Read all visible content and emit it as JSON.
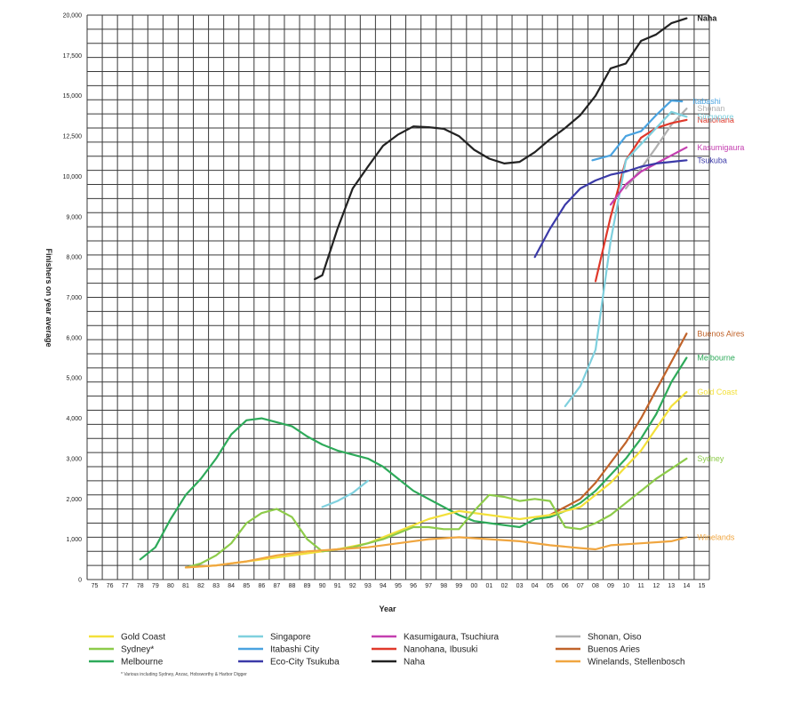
{
  "chart_data": {
    "type": "line",
    "xlabel": "Year",
    "ylabel": "Finishers on year average",
    "y_ticks": [
      0,
      1000,
      2000,
      3000,
      4000,
      5000,
      6000,
      7000,
      8000,
      9000,
      10000,
      12500,
      15000,
      17500,
      20000
    ],
    "y_tick_labels": [
      "0",
      "1,000",
      "2,000",
      "3,000",
      "4,000",
      "5,000",
      "6,000",
      "7,000",
      "8,000",
      "9,000",
      "10,000",
      "12,500",
      "15,000",
      "17,500",
      "20,000"
    ],
    "x_tick_labels": [
      "75",
      "76",
      "77",
      "78",
      "79",
      "80",
      "81",
      "82",
      "83",
      "84",
      "85",
      "86",
      "87",
      "88",
      "89",
      "90",
      "91",
      "92",
      "93",
      "94",
      "95",
      "96",
      "97",
      "98",
      "99",
      "00",
      "01",
      "02",
      "03",
      "04",
      "05",
      "06",
      "07",
      "08",
      "09",
      "10",
      "11",
      "12",
      "13",
      "14",
      "15"
    ],
    "x_range": [
      1975,
      2015
    ],
    "grid": true,
    "footnote": "* Various including Sydney, Anzac, Hobsworthy & Harbor Digger",
    "series": [
      {
        "name": "Naha",
        "label": "Naha",
        "color": "#222222",
        "x": [
          1989.5,
          1990,
          1991,
          1992,
          1993,
          1994,
          1995,
          1996,
          1997,
          1998,
          1999,
          2000,
          2001,
          2002,
          2003,
          2004,
          2005,
          2006,
          2007,
          2008,
          2009,
          2010,
          2011,
          2012,
          2013,
          2014
        ],
        "y": [
          7450,
          7550,
          8700,
          9700,
          10600,
          11900,
          12600,
          13100,
          13050,
          12950,
          12500,
          11650,
          11100,
          10800,
          10900,
          11500,
          12300,
          13000,
          13800,
          15000,
          16700,
          17000,
          18400,
          18800,
          19500,
          19800
        ]
      },
      {
        "name": "Itabashi City",
        "label": "Itabashi",
        "color": "#4aa3e0",
        "x": [
          2007.8,
          2009,
          2010,
          2011,
          2012,
          2013,
          2013.7
        ],
        "y": [
          11000,
          11300,
          12500,
          12800,
          13800,
          14700,
          14650
        ]
      },
      {
        "name": "Shonan, Oiso",
        "label": "Shonan",
        "color": "#b0b0b0",
        "x": [
          2010,
          2011,
          2012,
          2013,
          2014
        ],
        "y": [
          9700,
          10500,
          11800,
          13200,
          14200
        ]
      },
      {
        "name": "Nanohana, Ibusuki",
        "label": "Nanohana",
        "color": "#e0392b",
        "x": [
          2008,
          2009,
          2010,
          2011,
          2012,
          2013,
          2014
        ],
        "y": [
          7400,
          9000,
          11000,
          12400,
          13000,
          13300,
          13500
        ]
      },
      {
        "name": "Singapore",
        "label": "Singapore",
        "color": "#7fd0de",
        "x": [
          2006,
          2007,
          2008,
          2009,
          2010,
          2011,
          2012,
          2013,
          2014
        ],
        "y": [
          4300,
          4800,
          5700,
          8400,
          11000,
          12000,
          13000,
          14000,
          13700
        ]
      },
      {
        "name": "Kasumigaura, Tsuchiura",
        "label": "Kasumigaura",
        "color": "#c43fb0",
        "x": [
          2009,
          2010,
          2011,
          2012,
          2013,
          2014
        ],
        "y": [
          9300,
          9800,
          10300,
          10800,
          11300,
          11800
        ]
      },
      {
        "name": "Eco-City Tsukuba",
        "label": "Tsukuba",
        "color": "#3b3aa8",
        "x": [
          2004,
          2005,
          2006,
          2007,
          2008,
          2009,
          2010,
          2011,
          2012,
          2013,
          2014
        ],
        "y": [
          8000,
          8700,
          9300,
          9700,
          9900,
          10100,
          10300,
          10600,
          10800,
          10900,
          11000
        ]
      },
      {
        "name": "Buenos Aries",
        "label": "Buenos Aires",
        "color": "#c0632a",
        "x": [
          2005,
          2006,
          2007,
          2008,
          2009,
          2010,
          2011,
          2012,
          2013,
          2014
        ],
        "y": [
          1600,
          1800,
          2000,
          2400,
          2900,
          3400,
          4000,
          4700,
          5400,
          6100
        ]
      },
      {
        "name": "Melbourne",
        "label": "Melbourne",
        "color": "#2eaa5a",
        "x": [
          1978,
          1979,
          1980,
          1981,
          1982,
          1983,
          1984,
          1985,
          1986,
          1987,
          1988,
          1989,
          1990,
          1991,
          1992,
          1993,
          1994,
          1995,
          1996,
          1997,
          1998,
          1999,
          2000,
          2001,
          2002,
          2003,
          2004,
          2005,
          2006,
          2007,
          2008,
          2009,
          2010,
          2011,
          2012,
          2013,
          2014
        ],
        "y": [
          500,
          800,
          1500,
          2100,
          2500,
          3000,
          3600,
          3950,
          4000,
          3900,
          3800,
          3550,
          3350,
          3200,
          3100,
          3000,
          2800,
          2500,
          2200,
          2000,
          1800,
          1600,
          1450,
          1400,
          1350,
          1300,
          1500,
          1550,
          1700,
          1900,
          2200,
          2600,
          3000,
          3500,
          4100,
          4900,
          5500
        ]
      },
      {
        "name": "Gold Coast",
        "label": "Gold Coast",
        "color": "#f3e03a",
        "x": [
          1981,
          1983,
          1985,
          1987,
          1989,
          1991,
          1993,
          1995,
          1997,
          1999,
          2001,
          2003,
          2005,
          2007,
          2009,
          2011,
          2013,
          2014
        ],
        "y": [
          300,
          350,
          450,
          550,
          650,
          750,
          900,
          1200,
          1500,
          1700,
          1600,
          1500,
          1600,
          1800,
          2400,
          3200,
          4300,
          4650
        ]
      },
      {
        "name": "Sydney*",
        "label": "Sydney",
        "color": "#8dcb4a",
        "x": [
          1981,
          1982,
          1983,
          1984,
          1985,
          1986,
          1987,
          1988,
          1989,
          1990,
          1991,
          1992,
          1993,
          1994,
          1995,
          1996,
          1997,
          1998,
          1999,
          2000,
          2001,
          2002,
          2003,
          2004,
          2005,
          2006,
          2007,
          2008,
          2009,
          2010,
          2011,
          2012,
          2013,
          2014
        ],
        "y": [
          300,
          400,
          600,
          900,
          1400,
          1650,
          1750,
          1550,
          1000,
          700,
          750,
          800,
          900,
          1000,
          1150,
          1300,
          1300,
          1250,
          1250,
          1700,
          2100,
          2050,
          1950,
          2000,
          1950,
          1300,
          1250,
          1400,
          1600,
          1900,
          2200,
          2500,
          2750,
          3000
        ]
      },
      {
        "name": "Winelands, Stellenbosch",
        "label": "Winelands",
        "color": "#f0a640",
        "x": [
          1981,
          1983,
          1985,
          1987,
          1989,
          1991,
          1993,
          1995,
          1997,
          1999,
          2001,
          2003,
          2005,
          2007,
          2008,
          2009,
          2011,
          2013,
          2014
        ],
        "y": [
          300,
          350,
          450,
          600,
          700,
          750,
          800,
          900,
          1000,
          1050,
          1000,
          950,
          850,
          780,
          750,
          850,
          900,
          950,
          1050
        ]
      },
      {
        "name": "Singapore (early)",
        "label": "",
        "color": "#7fd0de",
        "x": [
          1990,
          1991,
          1992,
          1993
        ],
        "y": [
          1800,
          1950,
          2150,
          2450
        ]
      }
    ]
  },
  "legend_columns": [
    [
      {
        "name": "Gold Coast",
        "color": "#f3e03a"
      },
      {
        "name": "Sydney*",
        "color": "#8dcb4a"
      },
      {
        "name": "Melbourne",
        "color": "#2eaa5a"
      }
    ],
    [
      {
        "name": "Singapore",
        "color": "#7fd0de"
      },
      {
        "name": "Itabashi City",
        "color": "#4aa3e0"
      },
      {
        "name": "Eco-City Tsukuba",
        "color": "#3b3aa8"
      }
    ],
    [
      {
        "name": "Kasumigaura, Tsuchiura",
        "color": "#c43fb0"
      },
      {
        "name": "Nanohana, Ibusuki",
        "color": "#e0392b"
      },
      {
        "name": "Naha",
        "color": "#222222"
      }
    ],
    [
      {
        "name": "Shonan, Oiso",
        "color": "#b0b0b0"
      },
      {
        "name": "Buenos Aries",
        "color": "#c0632a"
      },
      {
        "name": "Winelands, Stellenbosch",
        "color": "#f0a640"
      }
    ]
  ]
}
